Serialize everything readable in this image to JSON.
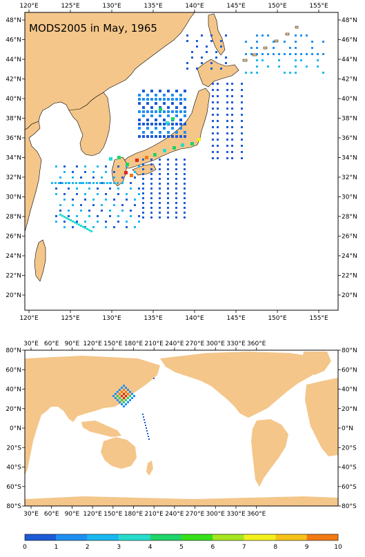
{
  "title": "MODS2005 in May, 1965",
  "colors": {
    "land": "#f4c68a",
    "ocean": "#ffffff",
    "frame": "#000000"
  },
  "top_map": {
    "lon_labels": [
      "120°E",
      "125°E",
      "130°E",
      "135°E",
      "140°E",
      "145°E",
      "150°E",
      "155°E"
    ],
    "lat_labels": [
      "20°N",
      "22°N",
      "24°N",
      "26°N",
      "28°N",
      "30°N",
      "32°N",
      "34°N",
      "36°N",
      "38°N",
      "40°N",
      "42°N",
      "44°N",
      "46°N",
      "48°N"
    ]
  },
  "bottom_map": {
    "lon_labels": [
      "30°E",
      "60°E",
      "90°E",
      "120°E",
      "150°E",
      "180°E",
      "210°E",
      "240°E",
      "270°E",
      "300°E",
      "330°E",
      "360°E"
    ],
    "lat_labels": [
      "80°S",
      "60°S",
      "40°S",
      "20°S",
      "0°N",
      "20°N",
      "40°N",
      "60°N",
      "80°N"
    ]
  },
  "colorbar": {
    "labels": [
      "0",
      "1",
      "2",
      "3",
      "4",
      "5",
      "6",
      "7",
      "8",
      "9",
      "10"
    ],
    "colors": [
      "#1c5ad6",
      "#1f8ff2",
      "#19b8f0",
      "#26dccc",
      "#1fd468",
      "#36e01a",
      "#a6e61e",
      "#f2f01c",
      "#f5c21a",
      "#f27a14",
      "#d8281c"
    ]
  }
}
